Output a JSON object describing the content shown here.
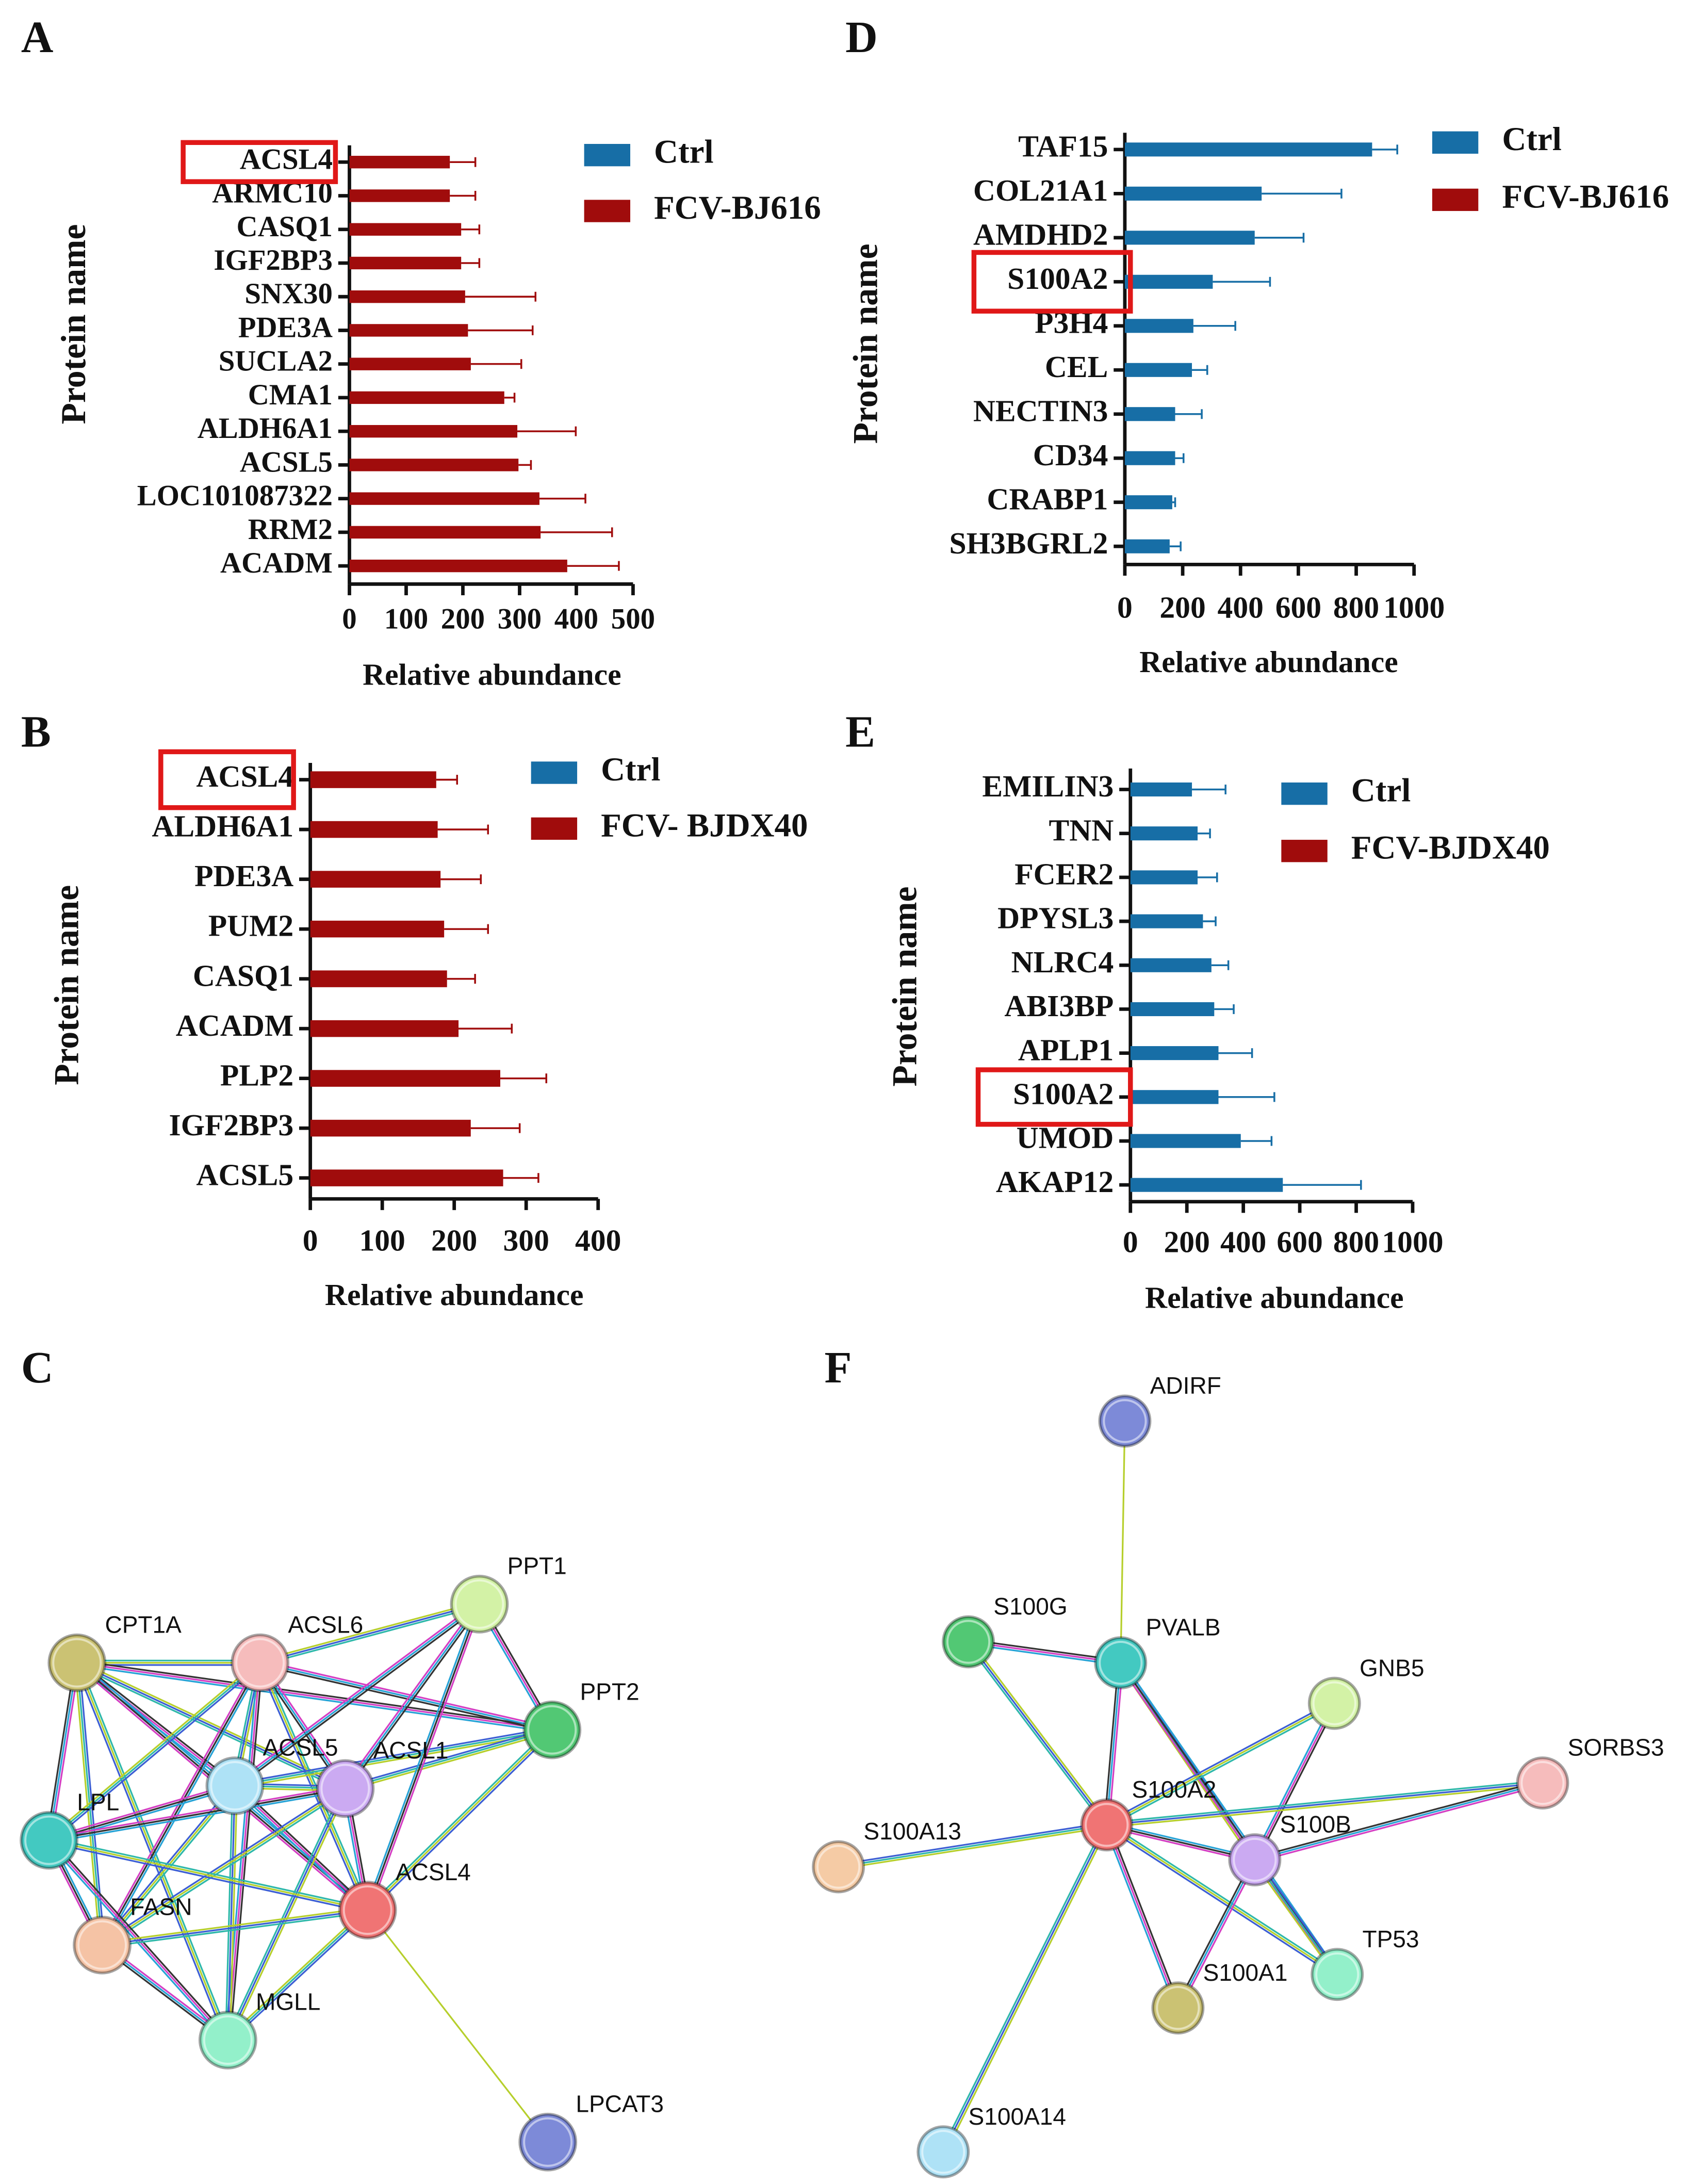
{
  "chart_data": [
    {
      "type": "bar",
      "panel": "A",
      "orientation": "horizontal",
      "x_label": "Relative abundance",
      "y_label": "Protein name",
      "categories": [
        "ACSL4",
        "ARMC10",
        "CASQ1",
        "IGF2BP3",
        "SNX30",
        "PDE3A",
        "SUCLA2",
        "CMA1",
        "ALDH6A1",
        "ACSL5",
        "LOC101087322",
        "RRM2",
        "ACADM"
      ],
      "series": [
        {
          "name": "Ctrl",
          "color": "#176ea6",
          "values": [
            null,
            null,
            null,
            null,
            null,
            null,
            null,
            null,
            null,
            null,
            null,
            null,
            null
          ]
        },
        {
          "name": "FCV-BJ616",
          "color": "#a00c0c",
          "values": [
            177,
            177,
            197,
            197,
            204,
            209,
            214,
            273,
            296,
            298,
            335,
            337,
            384
          ],
          "errors": [
            45,
            45,
            32,
            32,
            124,
            114,
            89,
            18,
            103,
            22,
            81,
            126,
            91
          ]
        }
      ],
      "xlim": [
        0,
        500
      ],
      "xticks": [
        0,
        100,
        200,
        300,
        400,
        500
      ],
      "highlight": 0
    },
    {
      "type": "bar",
      "panel": "B",
      "orientation": "horizontal",
      "x_label": "Relative abundance",
      "y_label": "Protein name",
      "categories": [
        "ACSL4",
        "ALDH6A1",
        "PDE3A",
        "PUM2",
        "CASQ1",
        "ACADM",
        "PLP2",
        "IGF2BP3",
        "ACSL5"
      ],
      "series": [
        {
          "name": "Ctrl",
          "color": "#176ea6",
          "values": [
            null,
            null,
            null,
            null,
            null,
            null,
            null,
            null,
            null
          ]
        },
        {
          "name": "FCV- BJDX40",
          "color": "#a00c0c",
          "values": [
            175,
            177,
            181,
            186,
            190,
            206,
            264,
            223,
            268
          ],
          "errors": [
            29,
            70,
            56,
            61,
            39,
            74,
            64,
            68,
            49
          ]
        }
      ],
      "xlim": [
        0,
        400
      ],
      "xticks": [
        0,
        100,
        200,
        300,
        400
      ],
      "highlight": 0
    },
    {
      "type": "bar",
      "panel": "D",
      "orientation": "horizontal",
      "x_label": "Relative abundance",
      "y_label": "Protein name",
      "categories": [
        "TAF15",
        "COL21A1",
        "AMDHD2",
        "S100A2",
        "P3H4",
        "CEL",
        "NECTIN3",
        "CD34",
        "CRABP1",
        "SH3BGRL2"
      ],
      "series": [
        {
          "name": "Ctrl",
          "color": "#176ea6",
          "values": [
            855,
            473,
            449,
            304,
            237,
            232,
            174,
            174,
            164,
            155
          ],
          "errors": [
            87,
            276,
            169,
            198,
            145,
            53,
            92,
            29,
            10,
            38
          ]
        },
        {
          "name": "FCV-BJ616",
          "color": "#a00c0c",
          "values": [
            null,
            null,
            null,
            null,
            null,
            null,
            null,
            null,
            null,
            null
          ]
        }
      ],
      "xlim": [
        0,
        1000
      ],
      "xticks": [
        0,
        200,
        400,
        600,
        800,
        1000
      ],
      "highlight": 3
    },
    {
      "type": "bar",
      "panel": "E",
      "orientation": "horizontal",
      "x_label": "Relative abundance",
      "y_label": "Protein name",
      "categories": [
        "EMILIN3",
        "TNN",
        "FCER2",
        "DPYSL3",
        "NLRC4",
        "ABI3BP",
        "APLP1",
        "S100A2",
        "UMOD",
        "AKAP12"
      ],
      "series": [
        {
          "name": "Ctrl",
          "color": "#176ea6",
          "values": [
            218,
            238,
            238,
            257,
            287,
            297,
            312,
            312,
            391,
            540
          ],
          "errors": [
            119,
            44,
            69,
            45,
            60,
            69,
            119,
            198,
            109,
            277
          ]
        },
        {
          "name": "FCV-BJDX40",
          "color": "#a00c0c",
          "values": [
            null,
            null,
            null,
            null,
            null,
            null,
            null,
            null,
            null,
            null
          ]
        }
      ],
      "xlim": [
        0,
        1000
      ],
      "xticks": [
        0,
        200,
        400,
        600,
        800,
        1000
      ],
      "highlight": 7
    }
  ],
  "networks": [
    {
      "panel": "C",
      "nodes": [
        {
          "label": "CPT1A",
          "color": "#cbc273"
        },
        {
          "label": "ACSL6",
          "color": "#f6bcbc"
        },
        {
          "label": "PPT1",
          "color": "#d3f2a6"
        },
        {
          "label": "PPT2",
          "color": "#52c874"
        },
        {
          "label": "ACSL5",
          "color": "#aee2f6"
        },
        {
          "label": "ACSL1",
          "color": "#cbaaf2"
        },
        {
          "label": "LPL",
          "color": "#43c9c1"
        },
        {
          "label": "FASN",
          "color": "#f5c3a5"
        },
        {
          "label": "ACSL4",
          "color": "#f07474"
        },
        {
          "label": "MGLL",
          "color": "#93f0ca"
        },
        {
          "label": "LPCAT3",
          "color": "#7d8ad8"
        }
      ]
    },
    {
      "panel": "F",
      "nodes": [
        {
          "label": "ADIRF",
          "color": "#7d8ad8"
        },
        {
          "label": "S100G",
          "color": "#52c874"
        },
        {
          "label": "PVALB",
          "color": "#43c9c1"
        },
        {
          "label": "GNB5",
          "color": "#d3f2a6"
        },
        {
          "label": "SORBS3",
          "color": "#f6bcbc"
        },
        {
          "label": "S100A2",
          "color": "#f07474"
        },
        {
          "label": "S100A13",
          "color": "#f5cba5"
        },
        {
          "label": "S100B",
          "color": "#cbaaf2"
        },
        {
          "label": "TP53",
          "color": "#93f0ca"
        },
        {
          "label": "S100A1",
          "color": "#cbc273"
        },
        {
          "label": "S100A14",
          "color": "#aee2f6"
        }
      ]
    }
  ]
}
